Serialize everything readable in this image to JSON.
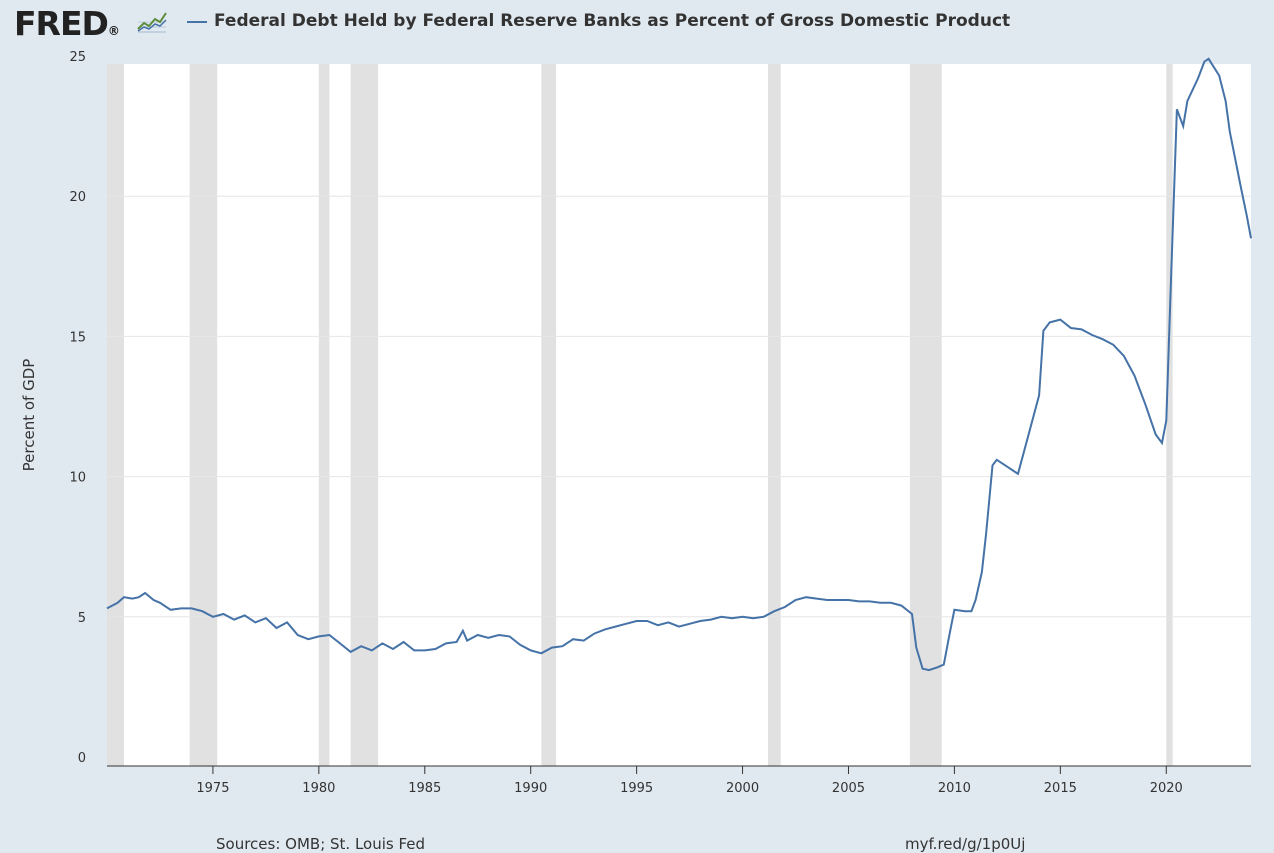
{
  "header": {
    "logo_text": "FRED",
    "logo_registered": "®",
    "icon": "line-graph-icon"
  },
  "chart_data": {
    "type": "line",
    "title": "Federal Debt Held by Federal Reserve Banks as Percent of Gross Domestic Product",
    "xlabel": "",
    "ylabel": "Percent of GDP",
    "xlim": [
      1970.0,
      2024.0
    ],
    "ylim": [
      0,
      25
    ],
    "y_ticks": [
      0,
      5,
      10,
      15,
      20,
      25
    ],
    "x_ticks": [
      1975,
      1980,
      1985,
      1990,
      1995,
      2000,
      2005,
      2010,
      2015,
      2020
    ],
    "grid": "horizontal",
    "legend": "top",
    "colors": {
      "line": "#4572a7",
      "recession": "#e1e1e1",
      "plot_bg": "#ffffff",
      "page_bg": "#e1e9f0"
    },
    "recessions": [
      [
        1970.0,
        1970.8
      ],
      [
        1973.9,
        1975.2
      ],
      [
        1980.0,
        1980.5
      ],
      [
        1981.5,
        1982.8
      ],
      [
        1990.5,
        1991.2
      ],
      [
        2001.2,
        2001.8
      ],
      [
        2007.9,
        2009.4
      ],
      [
        2020.0,
        2020.3
      ]
    ],
    "series": [
      {
        "name": "Federal Debt Held by Federal Reserve Banks as Percent of Gross Domestic Product",
        "x": [
          1970.0,
          1970.5,
          1970.8,
          1971.2,
          1971.5,
          1971.8,
          1972.2,
          1972.5,
          1973.0,
          1973.5,
          1974.0,
          1974.5,
          1975.0,
          1975.5,
          1976.0,
          1976.5,
          1977.0,
          1977.5,
          1978.0,
          1978.5,
          1979.0,
          1979.5,
          1980.0,
          1980.5,
          1981.0,
          1981.5,
          1982.0,
          1982.5,
          1983.0,
          1983.5,
          1984.0,
          1984.5,
          1985.0,
          1985.5,
          1986.0,
          1986.5,
          1986.8,
          1987.0,
          1987.5,
          1988.0,
          1988.5,
          1989.0,
          1989.5,
          1990.0,
          1990.5,
          1991.0,
          1991.5,
          1992.0,
          1992.5,
          1993.0,
          1993.5,
          1994.0,
          1994.5,
          1995.0,
          1995.5,
          1996.0,
          1996.5,
          1997.0,
          1997.5,
          1998.0,
          1998.5,
          1999.0,
          1999.5,
          2000.0,
          2000.5,
          2001.0,
          2001.5,
          2002.0,
          2002.5,
          2003.0,
          2003.5,
          2004.0,
          2004.5,
          2005.0,
          2005.5,
          2006.0,
          2006.5,
          2007.0,
          2007.5,
          2008.0,
          2008.2,
          2008.5,
          2008.8,
          2009.2,
          2009.5,
          2009.8,
          2010.0,
          2010.5,
          2010.8,
          2011.0,
          2011.3,
          2011.5,
          2011.8,
          2012.0,
          2012.5,
          2012.8,
          2013.0,
          2013.5,
          2014.0,
          2014.2,
          2014.5,
          2015.0,
          2015.5,
          2016.0,
          2016.5,
          2017.0,
          2017.5,
          2018.0,
          2018.5,
          2019.0,
          2019.5,
          2019.8,
          2020.0,
          2020.2,
          2020.5,
          2020.8,
          2021.0,
          2021.5,
          2021.8,
          2022.0,
          2022.5,
          2022.8,
          2023.0,
          2023.5,
          2023.8,
          2024.0
        ],
        "y": [
          5.3,
          5.5,
          5.7,
          5.65,
          5.7,
          5.85,
          5.6,
          5.5,
          5.25,
          5.3,
          5.3,
          5.2,
          5.0,
          5.1,
          4.9,
          5.05,
          4.8,
          4.95,
          4.6,
          4.8,
          4.35,
          4.2,
          4.3,
          4.35,
          4.05,
          3.75,
          3.95,
          3.8,
          4.05,
          3.85,
          4.1,
          3.8,
          3.8,
          3.85,
          4.05,
          4.1,
          4.5,
          4.15,
          4.35,
          4.25,
          4.35,
          4.3,
          4.0,
          3.8,
          3.7,
          3.9,
          3.95,
          4.2,
          4.15,
          4.4,
          4.55,
          4.65,
          4.75,
          4.85,
          4.85,
          4.7,
          4.8,
          4.65,
          4.75,
          4.85,
          4.9,
          5.0,
          4.95,
          5.0,
          4.95,
          5.0,
          5.2,
          5.35,
          5.6,
          5.7,
          5.65,
          5.6,
          5.6,
          5.6,
          5.55,
          5.55,
          5.5,
          5.5,
          5.4,
          5.1,
          3.9,
          3.15,
          3.1,
          3.2,
          3.3,
          4.5,
          5.25,
          5.2,
          5.2,
          5.6,
          6.6,
          8.0,
          10.4,
          10.6,
          10.35,
          10.2,
          10.1,
          11.5,
          12.9,
          15.2,
          15.5,
          15.6,
          15.3,
          15.25,
          15.05,
          14.9,
          14.7,
          14.3,
          13.6,
          12.6,
          11.5,
          11.2,
          12.0,
          16.5,
          23.1,
          22.5,
          23.4,
          24.2,
          24.8,
          24.9,
          24.3,
          23.4,
          22.3,
          20.4,
          19.3,
          18.5
        ]
      }
    ]
  },
  "footer": {
    "sources": "Sources: OMB; St. Louis Fed",
    "url": "myf.red/g/1p0Uj"
  }
}
